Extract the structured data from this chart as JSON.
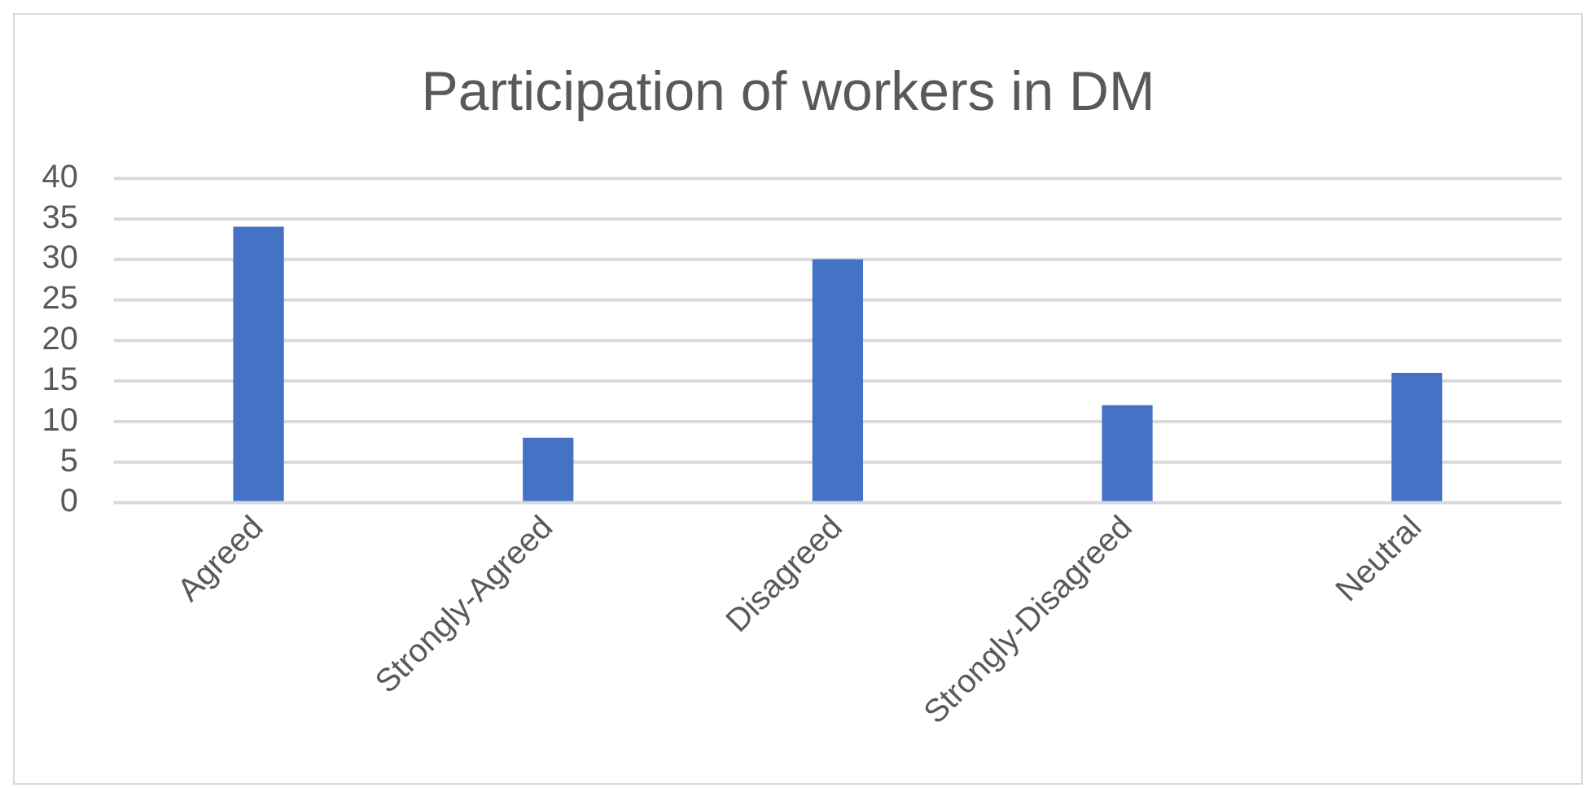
{
  "chart_data": {
    "type": "bar",
    "title": "Participation of workers in DM",
    "categories": [
      "Agreed",
      "Strongly-Agreed",
      "Disagreed",
      "Strongly-Disagreed",
      "Neutral"
    ],
    "values": [
      34,
      8,
      30,
      12,
      16
    ],
    "color": "#4472c4",
    "ylim": [
      0,
      40
    ],
    "yticks": [
      0,
      5,
      10,
      15,
      20,
      25,
      30,
      35,
      40
    ],
    "grid": "y"
  }
}
